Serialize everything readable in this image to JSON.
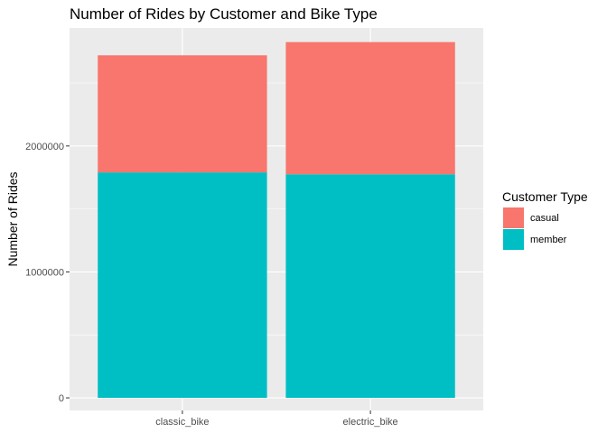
{
  "chart_data": {
    "type": "bar",
    "stacked": true,
    "title": "Number of Rides by Customer and Bike Type",
    "xlabel": "",
    "ylabel": "Number of Rides",
    "categories": [
      "classic_bike",
      "electric_bike"
    ],
    "series": [
      {
        "name": "casual",
        "values": [
          930000,
          1050000
        ],
        "color": "#F8766D"
      },
      {
        "name": "member",
        "values": [
          1790000,
          1775000
        ],
        "color": "#00BFC4"
      }
    ],
    "stack_order": [
      "member",
      "casual"
    ],
    "ylim": [
      -100000,
      2937000
    ],
    "yticks": [
      0,
      1000000,
      2000000
    ],
    "ytick_labels": [
      "0",
      "1000000",
      "2000000"
    ],
    "grid": true,
    "panel_background": "#EBEBEB",
    "grid_color": "#FFFFFF",
    "legend": {
      "title": "Customer Type",
      "placement": "right",
      "entries": [
        "casual",
        "member"
      ]
    }
  }
}
